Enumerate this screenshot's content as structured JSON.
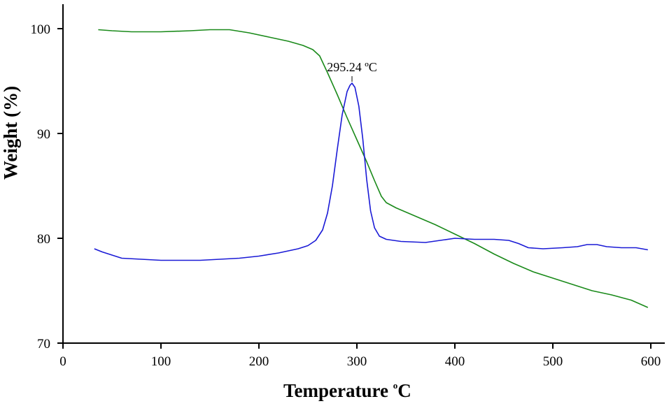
{
  "chart_data": {
    "type": "line",
    "xlabel": "Temperature",
    "xlabel_unit": "C",
    "xlabel_unit_sup": "o",
    "ylabel": "Weight (%)",
    "xlim": [
      0,
      600
    ],
    "ylim": [
      70,
      102
    ],
    "x_ticks": [
      "0",
      "100",
      "200",
      "300",
      "400",
      "500",
      "600"
    ],
    "y_ticks": [
      "70",
      "80",
      "90",
      "100"
    ],
    "grid": false,
    "legend": "none",
    "series": [
      {
        "color": "#1a8a1a",
        "points": [
          [
            36,
            99.9
          ],
          [
            50,
            99.8
          ],
          [
            70,
            99.7
          ],
          [
            100,
            99.7
          ],
          [
            130,
            99.8
          ],
          [
            150,
            99.9
          ],
          [
            170,
            99.9
          ],
          [
            190,
            99.6
          ],
          [
            210,
            99.2
          ],
          [
            230,
            98.8
          ],
          [
            245,
            98.4
          ],
          [
            255,
            98.0
          ],
          [
            262,
            97.4
          ],
          [
            270,
            95.8
          ],
          [
            280,
            93.7
          ],
          [
            290,
            91.5
          ],
          [
            300,
            89.4
          ],
          [
            310,
            87.3
          ],
          [
            318,
            85.5
          ],
          [
            325,
            84.0
          ],
          [
            330,
            83.4
          ],
          [
            340,
            82.9
          ],
          [
            360,
            82.1
          ],
          [
            380,
            81.3
          ],
          [
            400,
            80.4
          ],
          [
            420,
            79.5
          ],
          [
            440,
            78.5
          ],
          [
            460,
            77.6
          ],
          [
            480,
            76.8
          ],
          [
            500,
            76.2
          ],
          [
            520,
            75.6
          ],
          [
            540,
            75.0
          ],
          [
            560,
            74.6
          ],
          [
            580,
            74.1
          ],
          [
            597,
            73.4
          ]
        ]
      },
      {
        "color": "#1a1ad6",
        "points": [
          [
            32,
            79.0
          ],
          [
            40,
            78.7
          ],
          [
            50,
            78.4
          ],
          [
            60,
            78.1
          ],
          [
            80,
            78.0
          ],
          [
            100,
            77.9
          ],
          [
            120,
            77.9
          ],
          [
            140,
            77.9
          ],
          [
            160,
            78.0
          ],
          [
            180,
            78.1
          ],
          [
            200,
            78.3
          ],
          [
            220,
            78.6
          ],
          [
            240,
            79.0
          ],
          [
            250,
            79.3
          ],
          [
            258,
            79.8
          ],
          [
            265,
            80.8
          ],
          [
            270,
            82.4
          ],
          [
            275,
            85.0
          ],
          [
            280,
            88.5
          ],
          [
            285,
            91.8
          ],
          [
            290,
            94.0
          ],
          [
            293,
            94.6
          ],
          [
            295,
            94.8
          ],
          [
            298,
            94.4
          ],
          [
            302,
            92.6
          ],
          [
            306,
            89.5
          ],
          [
            310,
            85.6
          ],
          [
            314,
            82.6
          ],
          [
            318,
            81.0
          ],
          [
            323,
            80.2
          ],
          [
            330,
            79.9
          ],
          [
            345,
            79.7
          ],
          [
            370,
            79.6
          ],
          [
            385,
            79.8
          ],
          [
            400,
            80.0
          ],
          [
            420,
            79.9
          ],
          [
            440,
            79.9
          ],
          [
            455,
            79.8
          ],
          [
            465,
            79.5
          ],
          [
            475,
            79.1
          ],
          [
            490,
            79.0
          ],
          [
            510,
            79.1
          ],
          [
            525,
            79.2
          ],
          [
            535,
            79.4
          ],
          [
            545,
            79.4
          ],
          [
            555,
            79.2
          ],
          [
            570,
            79.1
          ],
          [
            585,
            79.1
          ],
          [
            597,
            78.9
          ]
        ]
      }
    ],
    "annotations": [
      {
        "text": "295.24 ºC",
        "x": 295,
        "y": 94.8
      }
    ]
  }
}
